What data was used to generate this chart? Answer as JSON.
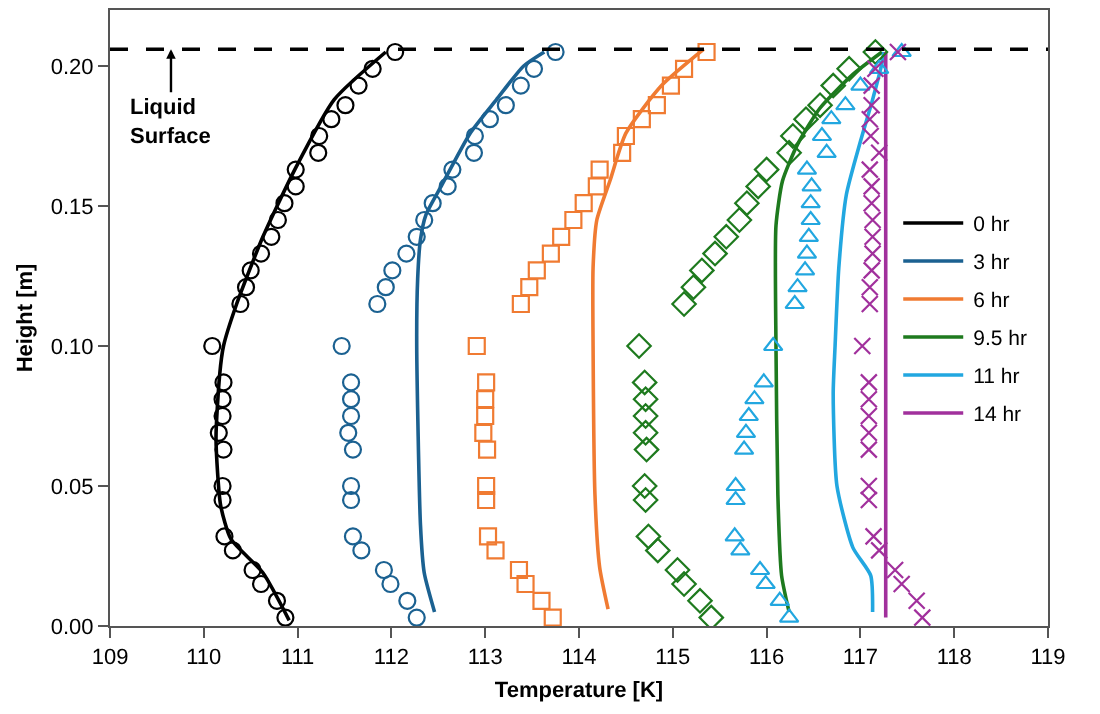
{
  "chart_data": {
    "type": "line",
    "xlabel": "Temperature [K]",
    "ylabel": "Height [m]",
    "xlim": [
      109,
      119
    ],
    "xticks": [
      109,
      110,
      111,
      112,
      113,
      114,
      115,
      116,
      117,
      118,
      119
    ],
    "ylim": [
      0,
      0.22
    ],
    "yticks": [
      {
        "value": 0,
        "label": "0.00"
      },
      {
        "value": 0.05,
        "label": "0.05"
      },
      {
        "value": 0.1,
        "label": "0.10"
      },
      {
        "value": 0.15,
        "label": "0.15"
      },
      {
        "value": 0.2,
        "label": "0.20"
      }
    ],
    "grid": false,
    "legend": "right",
    "ref_lines": [
      {
        "axis": "y",
        "value": 0.206,
        "label": "Liquid Surface",
        "color": "#000000",
        "line_style": "dashed"
      }
    ],
    "series": [
      {
        "name": "0 hr",
        "color": "#000000",
        "marker": "none",
        "x": [
          110.91,
          110.63,
          110.29,
          110.18,
          110.13,
          110.17,
          110.21,
          110.35,
          110.63,
          110.97,
          111.39,
          111.94
        ],
        "values": [
          0.002,
          0.019,
          0.031,
          0.043,
          0.067,
          0.09,
          0.1,
          0.115,
          0.139,
          0.163,
          0.188,
          0.205
        ]
      },
      {
        "name": "3 hr",
        "color": "#1b6191",
        "marker": "none",
        "x": [
          112.46,
          112.35,
          112.31,
          112.27,
          112.28,
          112.31,
          112.37,
          112.53,
          112.84,
          113.12,
          113.41,
          113.63
        ],
        "values": [
          0.005,
          0.019,
          0.036,
          0.1,
          0.124,
          0.138,
          0.147,
          0.157,
          0.176,
          0.188,
          0.2,
          0.205
        ]
      },
      {
        "name": "6 hr",
        "color": "#f07b32",
        "marker": "none",
        "x": [
          114.31,
          114.22,
          114.17,
          114.15,
          114.15,
          114.19,
          114.33,
          114.5,
          114.88,
          115.33
        ],
        "values": [
          0.006,
          0.021,
          0.047,
          0.1,
          0.128,
          0.145,
          0.159,
          0.176,
          0.193,
          0.206
        ]
      },
      {
        "name": "9.5 hr",
        "color": "#1e7a1e",
        "marker": "none",
        "x": [
          116.24,
          116.16,
          116.12,
          116.1,
          116.1,
          116.17,
          116.33,
          116.57,
          116.92,
          117.23
        ],
        "values": [
          0.005,
          0.018,
          0.047,
          0.1,
          0.143,
          0.159,
          0.172,
          0.185,
          0.197,
          0.205
        ]
      },
      {
        "name": "11 hr",
        "color": "#22a7e0",
        "marker": "none",
        "x": [
          117.13,
          117.11,
          116.92,
          116.75,
          116.71,
          116.73,
          116.77,
          116.85,
          117.0,
          117.13,
          117.23,
          117.25
        ],
        "values": [
          0.005,
          0.018,
          0.028,
          0.05,
          0.083,
          0.1,
          0.128,
          0.154,
          0.173,
          0.188,
          0.201,
          0.205
        ]
      },
      {
        "name": "14 hr",
        "color": "#a1309c",
        "marker": "none",
        "x": [
          117.27,
          117.27
        ],
        "values": [
          0.003,
          0.205
        ]
      },
      {
        "type": "scatter",
        "color": "#000000",
        "marker": "circle",
        "x": [
          110.87,
          110.78,
          110.61,
          110.52,
          110.31,
          110.22,
          110.2,
          110.2,
          110.21,
          110.16,
          110.2,
          110.2,
          110.21,
          110.09,
          110.39,
          110.45,
          110.5,
          110.61,
          110.72,
          110.79,
          110.86,
          110.98,
          110.98,
          111.22,
          111.23,
          111.36,
          111.51,
          111.65,
          111.8,
          112.04
        ],
        "values": [
          0.003,
          0.009,
          0.015,
          0.02,
          0.027,
          0.032,
          0.045,
          0.05,
          0.063,
          0.069,
          0.075,
          0.081,
          0.087,
          0.1,
          0.115,
          0.121,
          0.127,
          0.133,
          0.139,
          0.145,
          0.151,
          0.157,
          0.163,
          0.169,
          0.175,
          0.181,
          0.186,
          0.193,
          0.199,
          0.205
        ]
      },
      {
        "type": "scatter",
        "color": "#1b6191",
        "marker": "circle",
        "x": [
          112.27,
          112.17,
          111.99,
          111.92,
          111.68,
          111.59,
          111.57,
          111.57,
          111.59,
          111.54,
          111.57,
          111.57,
          111.57,
          111.47,
          111.85,
          111.94,
          112.01,
          112.16,
          112.27,
          112.35,
          112.44,
          112.6,
          112.65,
          112.88,
          112.89,
          113.05,
          113.22,
          113.38,
          113.52,
          113.75
        ],
        "values": [
          0.003,
          0.009,
          0.015,
          0.02,
          0.027,
          0.032,
          0.045,
          0.05,
          0.063,
          0.069,
          0.075,
          0.081,
          0.087,
          0.1,
          0.115,
          0.121,
          0.127,
          0.133,
          0.139,
          0.145,
          0.151,
          0.157,
          0.163,
          0.169,
          0.175,
          0.181,
          0.186,
          0.193,
          0.199,
          0.205
        ]
      },
      {
        "type": "scatter",
        "color": "#f07b32",
        "marker": "square",
        "x": [
          113.72,
          113.6,
          113.43,
          113.36,
          113.11,
          113.03,
          113.01,
          113.01,
          113.02,
          112.98,
          113.0,
          113.0,
          113.01,
          112.91,
          113.38,
          113.47,
          113.55,
          113.7,
          113.81,
          113.94,
          114.05,
          114.19,
          114.22,
          114.46,
          114.5,
          114.67,
          114.83,
          114.98,
          115.12,
          115.36
        ],
        "values": [
          0.003,
          0.009,
          0.015,
          0.02,
          0.027,
          0.032,
          0.045,
          0.05,
          0.063,
          0.069,
          0.075,
          0.081,
          0.087,
          0.1,
          0.115,
          0.121,
          0.127,
          0.133,
          0.139,
          0.145,
          0.151,
          0.157,
          0.163,
          0.169,
          0.175,
          0.181,
          0.186,
          0.193,
          0.199,
          0.205
        ]
      },
      {
        "type": "scatter",
        "color": "#1e7a1e",
        "marker": "diamond",
        "x": [
          115.41,
          115.29,
          115.12,
          115.05,
          114.84,
          114.74,
          114.71,
          114.7,
          114.72,
          114.71,
          114.71,
          114.71,
          114.7,
          114.64,
          115.12,
          115.22,
          115.31,
          115.45,
          115.57,
          115.71,
          115.79,
          115.91,
          116.0,
          116.24,
          116.28,
          116.42,
          116.57,
          116.71,
          116.88,
          117.16
        ],
        "values": [
          0.003,
          0.009,
          0.015,
          0.02,
          0.027,
          0.032,
          0.045,
          0.05,
          0.063,
          0.069,
          0.075,
          0.081,
          0.087,
          0.1,
          0.115,
          0.121,
          0.127,
          0.133,
          0.139,
          0.145,
          0.151,
          0.157,
          0.163,
          0.169,
          0.175,
          0.181,
          0.186,
          0.193,
          0.199,
          0.205
        ]
      },
      {
        "type": "scatter",
        "color": "#22a7e0",
        "marker": "triangle",
        "x": [
          116.24,
          116.14,
          115.99,
          115.93,
          115.72,
          115.66,
          115.67,
          115.67,
          115.76,
          115.78,
          115.81,
          115.87,
          115.97,
          116.07,
          116.3,
          116.33,
          116.41,
          116.43,
          116.45,
          116.47,
          116.47,
          116.48,
          116.43,
          116.64,
          116.59,
          116.69,
          116.84,
          117.0,
          117.2,
          117.44
        ],
        "values": [
          0.003,
          0.009,
          0.015,
          0.02,
          0.027,
          0.032,
          0.045,
          0.05,
          0.063,
          0.069,
          0.075,
          0.081,
          0.087,
          0.1,
          0.115,
          0.121,
          0.127,
          0.133,
          0.139,
          0.145,
          0.151,
          0.157,
          0.163,
          0.169,
          0.175,
          0.181,
          0.186,
          0.193,
          0.199,
          0.205
        ]
      },
      {
        "type": "scatter",
        "color": "#a1309c",
        "marker": "cross",
        "x": [
          117.66,
          117.6,
          117.44,
          117.37,
          117.2,
          117.14,
          117.09,
          117.09,
          117.09,
          117.09,
          117.09,
          117.09,
          117.09,
          117.02,
          117.1,
          117.1,
          117.12,
          117.13,
          117.13,
          117.13,
          117.12,
          117.12,
          117.1,
          117.2,
          117.11,
          117.1,
          117.12,
          117.12,
          117.16,
          117.4
        ],
        "values": [
          0.003,
          0.009,
          0.015,
          0.02,
          0.027,
          0.032,
          0.045,
          0.05,
          0.063,
          0.069,
          0.075,
          0.081,
          0.087,
          0.1,
          0.115,
          0.121,
          0.127,
          0.133,
          0.139,
          0.145,
          0.151,
          0.157,
          0.163,
          0.169,
          0.175,
          0.181,
          0.186,
          0.193,
          0.199,
          0.205
        ]
      }
    ]
  }
}
